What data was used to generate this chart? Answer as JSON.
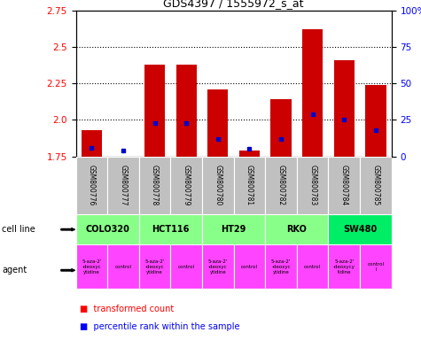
{
  "title": "GDS4397 / 1555972_s_at",
  "samples": [
    "GSM800776",
    "GSM800777",
    "GSM800778",
    "GSM800779",
    "GSM800780",
    "GSM800781",
    "GSM800782",
    "GSM800783",
    "GSM800784",
    "GSM800785"
  ],
  "red_values": [
    1.93,
    1.75,
    2.38,
    2.38,
    2.21,
    1.79,
    2.14,
    2.62,
    2.41,
    2.24
  ],
  "blue_values": [
    1.81,
    1.79,
    1.98,
    1.98,
    1.87,
    1.8,
    1.87,
    2.04,
    2.0,
    1.93
  ],
  "ylim_left": [
    1.75,
    2.75
  ],
  "yticks_left": [
    1.75,
    2.0,
    2.25,
    2.5,
    2.75
  ],
  "yticks_right": [
    0,
    25,
    50,
    75,
    100
  ],
  "bar_color": "#cc0000",
  "blue_color": "#0000cc",
  "sample_bg": "#c0c0c0",
  "cell_line_green": "#88ff88",
  "cell_line_bright": "#00ee66",
  "agent_pink": "#ff44ff"
}
